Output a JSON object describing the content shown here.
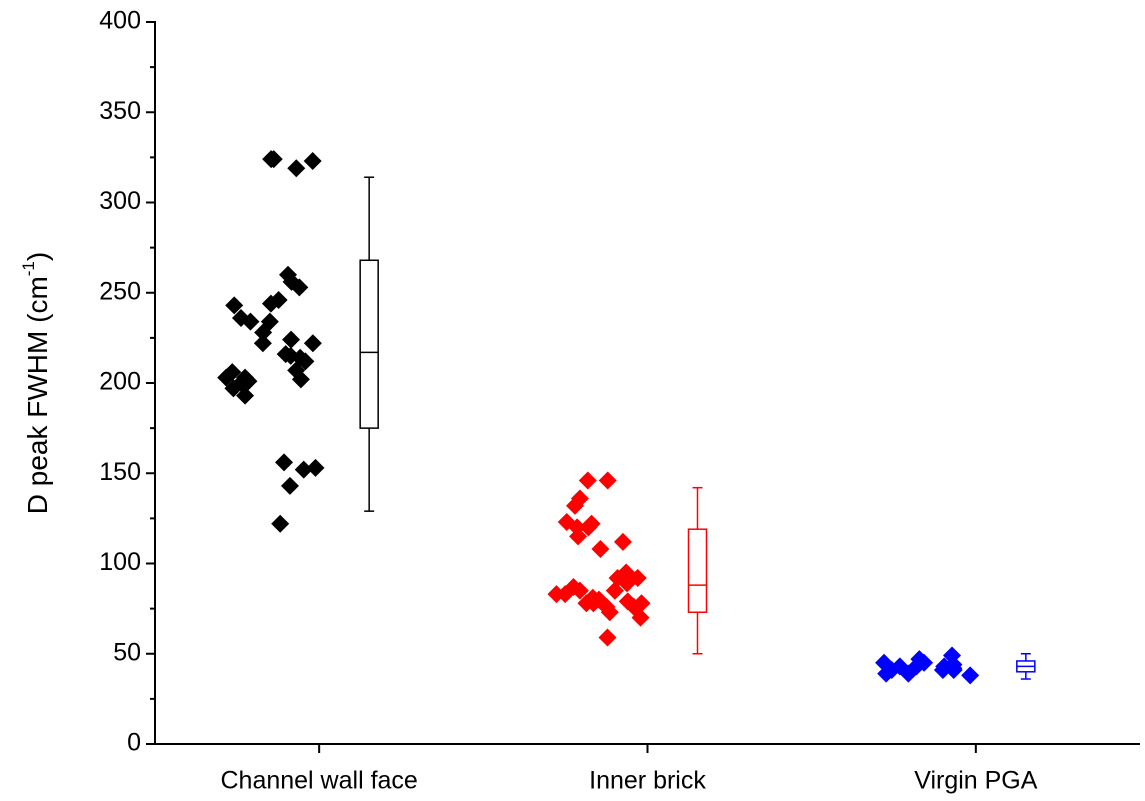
{
  "chart_data": {
    "type": "scatter-box",
    "y_label": {
      "text": "D peak FWHM (cm",
      "sup": "-1",
      "end": ")"
    },
    "categories": [
      "Channel wall face",
      "Inner brick",
      "Virgin PGA"
    ],
    "ylim": [
      0,
      400
    ],
    "yticks": [
      0,
      50,
      100,
      150,
      200,
      250,
      300,
      350,
      400
    ],
    "series": [
      {
        "color": "#000000",
        "values": [
          324,
          323,
          324,
          319,
          260,
          256,
          253,
          246,
          236,
          234,
          234,
          228,
          243,
          244,
          222,
          224,
          222,
          215,
          214,
          216,
          212,
          207,
          202,
          203,
          206,
          200,
          201,
          203,
          197,
          193,
          153,
          152,
          156,
          143,
          122
        ],
        "box": {
          "whisker_low": 129,
          "q1": 175,
          "median": 217,
          "q3": 268,
          "whisker_high": 314
        }
      },
      {
        "color": "#ff0000",
        "values": [
          146,
          146,
          136,
          132,
          123,
          122,
          120,
          120,
          115,
          112,
          108,
          95,
          89,
          92,
          92,
          85,
          87,
          83,
          80,
          78,
          78,
          81,
          83,
          79,
          78,
          73,
          76,
          76,
          70,
          59,
          85,
          85
        ],
        "box": {
          "whisker_low": 50,
          "q1": 73,
          "median": 88,
          "q3": 119,
          "whisker_high": 142
        }
      },
      {
        "color": "#0000ff",
        "values": [
          45,
          39,
          43,
          41,
          38,
          49,
          44,
          42,
          41,
          39,
          43,
          45,
          47,
          41,
          43
        ],
        "box": {
          "whisker_low": 36,
          "q1": 40,
          "median": 43,
          "q3": 46,
          "whisker_high": 50
        }
      }
    ]
  }
}
